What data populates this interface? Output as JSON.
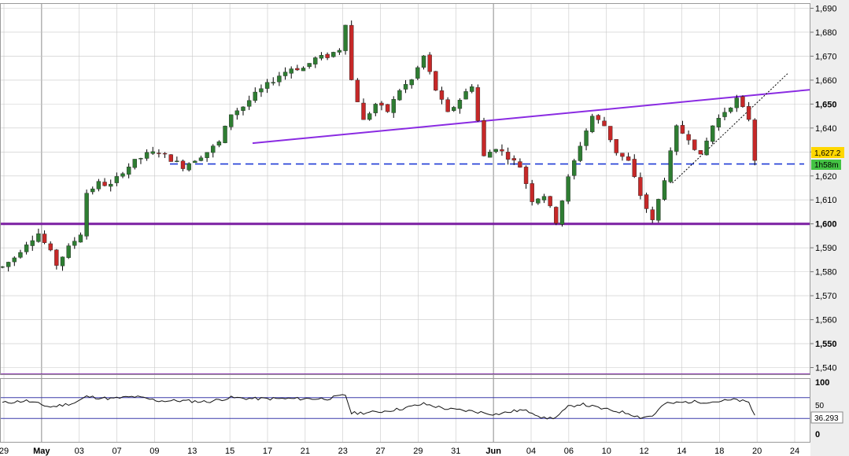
{
  "chart_data": {
    "type": "candlestick",
    "price_axis": {
      "range": [
        1533,
        1693
      ],
      "ticks": [
        "1,690",
        "1,680",
        "1,670",
        "1,660",
        "1,650",
        "1,640",
        "1,630",
        "1,620",
        "1,610",
        "1,600",
        "1,590",
        "1,580",
        "1,570",
        "1,560",
        "1,550",
        "1,540"
      ],
      "values": [
        1690,
        1680,
        1670,
        1660,
        1650,
        1640,
        1630,
        1620,
        1610,
        1600,
        1590,
        1580,
        1570,
        1560,
        1550,
        1540
      ],
      "bold_labels": [
        "1,650",
        "1,600",
        "1,550"
      ]
    },
    "time_axis": {
      "labels": [
        "29",
        "May",
        "03",
        "07",
        "09",
        "13",
        "15",
        "17",
        "21",
        "23",
        "27",
        "29",
        "31",
        "Jun",
        "04",
        "06",
        "10",
        "12",
        "14",
        "18",
        "20",
        "24"
      ],
      "bold_labels": [
        "May",
        "Jun"
      ],
      "month_boundaries": [
        "May",
        "Jun"
      ]
    },
    "last_price": "1,627.2",
    "timer": "1h58m",
    "colors": {
      "up": "#2e7d32",
      "down": "#c62828",
      "wick": "#000000",
      "trendline": "#8a2be2",
      "support": "#7b1fa2",
      "dashed": "#1f3ad6",
      "grid": "#c8c8c8",
      "price_badge": "#ffd700",
      "timer_badge": "#44c344",
      "axis_bg": "#eeeeee"
    },
    "price_path": [
      [
        0,
        1582
      ],
      [
        2,
        1586
      ],
      [
        4,
        1592
      ],
      [
        6,
        1596
      ],
      [
        8,
        1588
      ],
      [
        9,
        1583
      ],
      [
        11,
        1590
      ],
      [
        13,
        1596
      ],
      [
        14,
        1613
      ],
      [
        16,
        1617
      ],
      [
        18,
        1616
      ],
      [
        20,
        1622
      ],
      [
        22,
        1626
      ],
      [
        24,
        1629
      ],
      [
        26,
        1630
      ],
      [
        28,
        1627
      ],
      [
        30,
        1624
      ],
      [
        32,
        1627
      ],
      [
        34,
        1630
      ],
      [
        36,
        1634
      ],
      [
        38,
        1646
      ],
      [
        40,
        1649
      ],
      [
        42,
        1654
      ],
      [
        44,
        1658
      ],
      [
        46,
        1662
      ],
      [
        48,
        1665
      ],
      [
        50,
        1665
      ],
      [
        52,
        1669
      ],
      [
        54,
        1670
      ],
      [
        56,
        1673
      ],
      [
        57,
        1684
      ],
      [
        58,
        1660
      ],
      [
        60,
        1643
      ],
      [
        62,
        1650
      ],
      [
        64,
        1647
      ],
      [
        66,
        1656
      ],
      [
        68,
        1660
      ],
      [
        70,
        1670
      ],
      [
        72,
        1656
      ],
      [
        74,
        1646
      ],
      [
        76,
        1652
      ],
      [
        78,
        1658
      ],
      [
        80,
        1628
      ],
      [
        82,
        1632
      ],
      [
        84,
        1628
      ],
      [
        86,
        1624
      ],
      [
        88,
        1610
      ],
      [
        90,
        1612
      ],
      [
        92,
        1601
      ],
      [
        94,
        1619
      ],
      [
        96,
        1633
      ],
      [
        98,
        1645
      ],
      [
        100,
        1641
      ],
      [
        102,
        1630
      ],
      [
        104,
        1626
      ],
      [
        106,
        1612
      ],
      [
        108,
        1601
      ],
      [
        110,
        1619
      ],
      [
        112,
        1640
      ],
      [
        114,
        1636
      ],
      [
        116,
        1628
      ],
      [
        118,
        1641
      ],
      [
        120,
        1647
      ],
      [
        122,
        1652
      ],
      [
        124,
        1644
      ],
      [
        125,
        1627
      ]
    ],
    "overlays": {
      "rising_trendline": [
        [
          40,
          1633
        ],
        [
          130,
          1656
        ]
      ],
      "support_line": 1600,
      "lower_line": 1537,
      "dashed_level": 1625,
      "short_channel": [
        [
          110,
          1619
        ],
        [
          126,
          1664
        ]
      ]
    },
    "oscillator": {
      "ticks": [
        "100",
        "50",
        "0"
      ],
      "values": [
        100,
        50,
        0
      ],
      "upper_band": 70,
      "lower_band": 30,
      "last_value": "36.293",
      "series": [
        [
          0,
          60
        ],
        [
          4,
          64
        ],
        [
          8,
          52
        ],
        [
          12,
          60
        ],
        [
          14,
          72
        ],
        [
          18,
          68
        ],
        [
          22,
          72
        ],
        [
          26,
          64
        ],
        [
          30,
          64
        ],
        [
          34,
          62
        ],
        [
          38,
          70
        ],
        [
          42,
          68
        ],
        [
          46,
          68
        ],
        [
          50,
          68
        ],
        [
          54,
          68
        ],
        [
          57,
          75
        ],
        [
          58,
          40
        ],
        [
          62,
          42
        ],
        [
          66,
          48
        ],
        [
          70,
          58
        ],
        [
          74,
          48
        ],
        [
          78,
          44
        ],
        [
          82,
          38
        ],
        [
          86,
          46
        ],
        [
          88,
          42
        ],
        [
          90,
          30
        ],
        [
          92,
          32
        ],
        [
          94,
          52
        ],
        [
          96,
          58
        ],
        [
          100,
          48
        ],
        [
          104,
          40
        ],
        [
          106,
          32
        ],
        [
          108,
          35
        ],
        [
          110,
          58
        ],
        [
          114,
          62
        ],
        [
          118,
          62
        ],
        [
          122,
          66
        ],
        [
          124,
          60
        ],
        [
          125,
          36
        ]
      ]
    }
  }
}
